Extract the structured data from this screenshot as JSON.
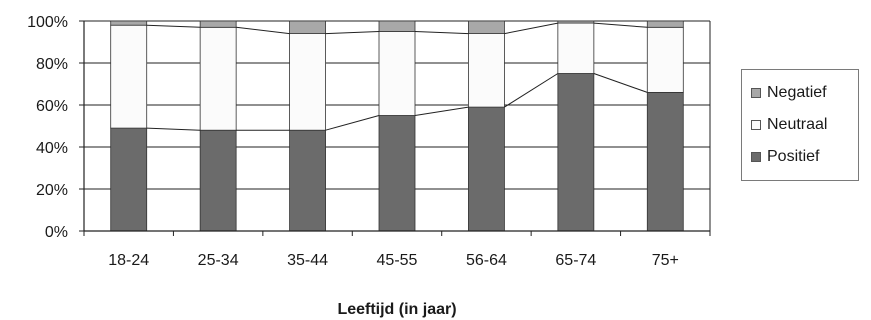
{
  "chart_data": {
    "type": "bar",
    "stacked": true,
    "categories": [
      "18-24",
      "25-34",
      "35-44",
      "45-55",
      "56-64",
      "65-74",
      "75+"
    ],
    "series": [
      {
        "name": "Positief",
        "color": "#6b6b6b",
        "values": [
          49,
          48,
          48,
          55,
          59,
          75,
          66
        ]
      },
      {
        "name": "Neutraal",
        "color": "#fbfbfb",
        "values": [
          49,
          49,
          46,
          40,
          35,
          24,
          31
        ]
      },
      {
        "name": "Negatief",
        "color": "#a8a8a8",
        "values": [
          2,
          3,
          6,
          5,
          6,
          1,
          3
        ]
      }
    ],
    "ylim": [
      0,
      100
    ],
    "yticks": [
      "0%",
      "20%",
      "40%",
      "60%",
      "80%",
      "100%"
    ],
    "xlabel": "Leeftijd (in jaar)",
    "ylabel": "",
    "title": "",
    "grid": true,
    "series_lines": true,
    "legend_position": "right",
    "legend": [
      {
        "label": "Negatief",
        "color": "#a8a8a8"
      },
      {
        "label": "Neutraal",
        "color": "#fbfbfb"
      },
      {
        "label": "Positief",
        "color": "#6b6b6b"
      }
    ]
  }
}
